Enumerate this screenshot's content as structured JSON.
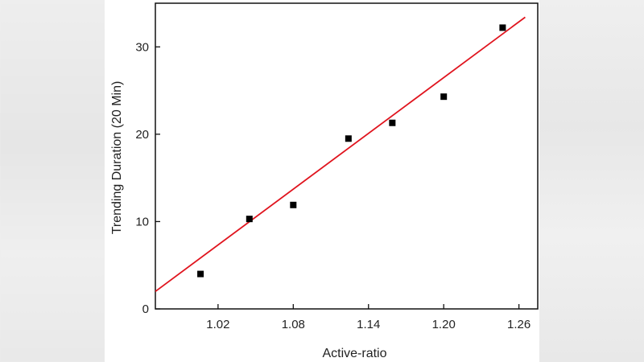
{
  "chart_data": {
    "type": "scatter",
    "xlabel": "Active-ratio",
    "ylabel": "Trending Duration (20 Min)",
    "xlim": [
      0.97,
      1.275
    ],
    "ylim": [
      0,
      35
    ],
    "x_ticks": [
      1.02,
      1.08,
      1.14,
      1.2,
      1.26
    ],
    "x_tick_labels": [
      "1.02",
      "1.08",
      "1.14",
      "1.20",
      "1.26"
    ],
    "y_ticks": [
      0,
      10,
      20,
      30
    ],
    "y_tick_labels": [
      "0",
      "10",
      "20",
      "30"
    ],
    "grid": false,
    "series": [
      {
        "type": "scatter",
        "marker": "square",
        "color": "#000000",
        "x": [
          1.006,
          1.045,
          1.08,
          1.124,
          1.159,
          1.2,
          1.247
        ],
        "y": [
          4.0,
          10.3,
          11.9,
          19.5,
          21.3,
          24.3,
          32.2
        ]
      },
      {
        "type": "line",
        "color": "#e0141e",
        "x": [
          0.97,
          1.265
        ],
        "y": [
          2.0,
          33.4
        ]
      }
    ]
  }
}
